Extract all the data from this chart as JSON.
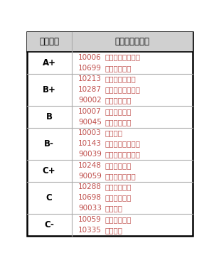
{
  "header": [
    "评估结果",
    "学校代码及名称"
  ],
  "rows": [
    {
      "grade": "A+",
      "schools": [
        {
          "code": "10006",
          "name": "北京航空航天大学"
        },
        {
          "code": "10699",
          "name": "西北工业大学"
        }
      ]
    },
    {
      "grade": "B+",
      "schools": [
        {
          "code": "10213",
          "name": "哈尔滨工业大学"
        },
        {
          "code": "10287",
          "name": "南京航空航天大学"
        },
        {
          "code": "90002",
          "name": "国防科技大学"
        }
      ]
    },
    {
      "grade": "B",
      "schools": [
        {
          "code": "10007",
          "name": "北京理工大学"
        },
        {
          "code": "90045",
          "name": "空军工程大学"
        }
      ]
    },
    {
      "grade": "B-",
      "schools": [
        {
          "code": "10003",
          "name": "清华大学"
        },
        {
          "code": "10143",
          "name": "沈阳航空航天大学"
        },
        {
          "code": "90039",
          "name": "海军航空工程学院"
        }
      ]
    },
    {
      "grade": "C+",
      "schools": [
        {
          "code": "10248",
          "name": "上海交通大学"
        },
        {
          "code": "90059",
          "name": "火箭军工程大学"
        }
      ]
    },
    {
      "grade": "C",
      "schools": [
        {
          "code": "10288",
          "name": "南京理工大学"
        },
        {
          "code": "10698",
          "name": "西安交通大学"
        },
        {
          "code": "90033",
          "name": "装备学院"
        }
      ]
    },
    {
      "grade": "C-",
      "schools": [
        {
          "code": "10059",
          "name": "中国民航大学"
        },
        {
          "code": "10335",
          "name": "浙江大学"
        }
      ]
    }
  ],
  "outer_border_color": "#000000",
  "inner_line_color": "#aaaaaa",
  "header_bg": "#d0d0d0",
  "grade_color": "#000000",
  "school_color": "#c0504d",
  "header_font_size": 8.5,
  "body_font_size": 7.5,
  "grade_font_size": 8.5,
  "fig_width": 3.01,
  "fig_height": 3.73,
  "dpi": 100,
  "col_split": 0.27
}
